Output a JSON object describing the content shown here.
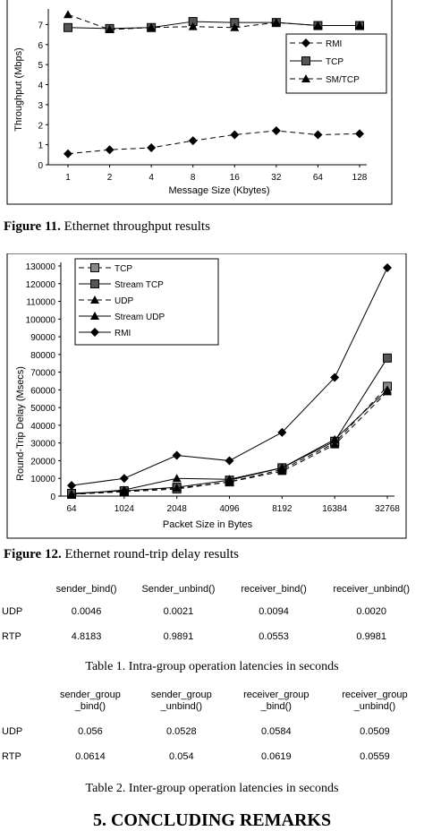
{
  "figure11": {
    "caption_label": "Figure 11.",
    "caption_text": " Ethernet throughput results",
    "chart_data": {
      "type": "line",
      "categories": [
        "1",
        "2",
        "4",
        "8",
        "16",
        "32",
        "64",
        "128"
      ],
      "series": [
        {
          "name": "RMI",
          "values": [
            0.55,
            0.75,
            0.85,
            1.2,
            1.5,
            1.7,
            1.5,
            1.55
          ],
          "marker": "diamond",
          "dash": "6,4"
        },
        {
          "name": "TCP",
          "values": [
            6.85,
            6.8,
            6.85,
            7.15,
            7.1,
            7.1,
            6.95,
            6.95
          ],
          "marker": "square",
          "dash": ""
        },
        {
          "name": "SM/TCP",
          "values": [
            7.5,
            6.75,
            6.85,
            6.9,
            6.85,
            7.1,
            6.95,
            6.95
          ],
          "marker": "triangle",
          "dash": "6,4"
        }
      ],
      "xlabel": "Message Size (Kbytes)",
      "ylabel": "Throughput (Mbps)",
      "yticks": [
        "0",
        "1",
        "2",
        "3",
        "4",
        "5",
        "6",
        "7"
      ],
      "ylim": [
        0,
        7.6
      ],
      "legend": "right"
    }
  },
  "figure12": {
    "caption_label": "Figure 12.",
    "caption_text": " Ethernet round-trip delay results",
    "chart_data": {
      "type": "line",
      "categories": [
        "64",
        "1024",
        "2048",
        "4096",
        "8192",
        "16384",
        "32768"
      ],
      "series": [
        {
          "name": "TCP",
          "values": [
            1000,
            2500,
            4000,
            8000,
            15000,
            30000,
            62000
          ],
          "marker": "square",
          "dash": "6,4"
        },
        {
          "name": "Stream TCP",
          "values": [
            1500,
            3000,
            5000,
            9000,
            16000,
            31000,
            78000
          ],
          "marker": "square",
          "dash": ""
        },
        {
          "name": "UDP",
          "values": [
            1000,
            3000,
            4500,
            8000,
            14000,
            29000,
            59000
          ],
          "marker": "triangle",
          "dash": "6,4"
        },
        {
          "name": "Stream UDP",
          "values": [
            1000,
            3500,
            10000,
            9500,
            16000,
            32000,
            60000
          ],
          "marker": "triangle",
          "dash": ""
        },
        {
          "name": "RMI",
          "values": [
            6000,
            10000,
            23000,
            20000,
            36000,
            67000,
            129000
          ],
          "marker": "diamond",
          "dash": ""
        }
      ],
      "xlabel": "Packet Size in Bytes",
      "ylabel": "Round-Trip Delay (Msecs)",
      "yticks": [
        "0",
        "10000",
        "20000",
        "30000",
        "40000",
        "50000",
        "60000",
        "70000",
        "80000",
        "90000",
        "100000",
        "110000",
        "120000",
        "130000"
      ],
      "ylim": [
        0,
        130000
      ],
      "legend": "top-left"
    }
  },
  "table1": {
    "headers": [
      "sender_bind()",
      "Sender_unbind()",
      "receiver_bind()",
      "receiver_unbind()"
    ],
    "rows": [
      {
        "label": "UDP",
        "values": [
          "0.0046",
          "0.0021",
          "0.0094",
          "0.0020"
        ]
      },
      {
        "label": "RTP",
        "values": [
          "4.8183",
          "0.9891",
          "0.0553",
          "0.9981"
        ]
      }
    ],
    "caption": "Table 1. Intra-group operation latencies in seconds"
  },
  "table2": {
    "headers_line1": [
      "sender_group",
      "sender_group",
      "receiver_group",
      "receiver_group"
    ],
    "headers_line2": [
      "_bind()",
      "_unbind()",
      "_bind()",
      "_unbind()"
    ],
    "rows": [
      {
        "label": "UDP",
        "values": [
          "0.056",
          "0.0528",
          "0.0584",
          "0.0509"
        ]
      },
      {
        "label": "RTP",
        "values": [
          "0.0614",
          "0.054",
          "0.0619",
          "0.0559"
        ]
      }
    ],
    "caption": "Table 2. Inter-group operation latencies in seconds"
  },
  "section_heading": "5.   CONCLUDING REMARKS"
}
